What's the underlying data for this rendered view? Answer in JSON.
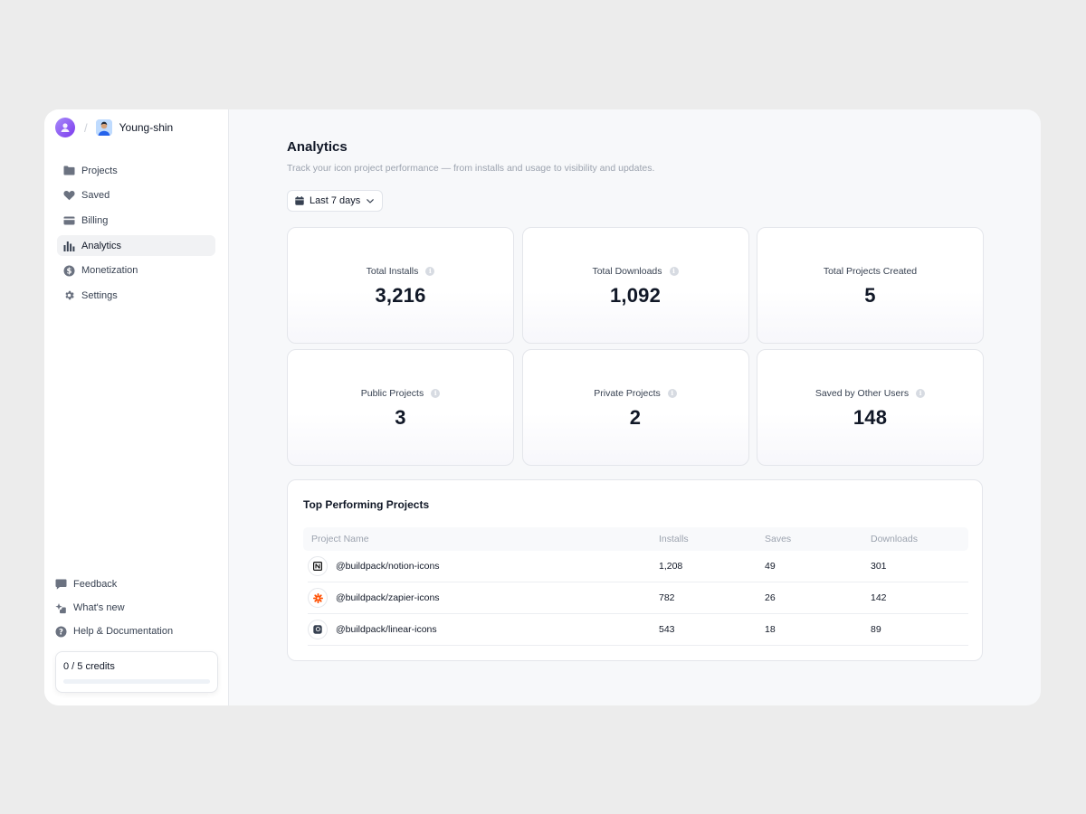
{
  "header": {
    "user_name": "Young-shin",
    "separator": "/"
  },
  "sidebar": {
    "items": [
      {
        "label": "Projects",
        "icon": "folder-icon",
        "active": false
      },
      {
        "label": "Saved",
        "icon": "heart-icon",
        "active": false
      },
      {
        "label": "Billing",
        "icon": "credit-card-icon",
        "active": false
      },
      {
        "label": "Analytics",
        "icon": "bar-chart-icon",
        "active": true
      },
      {
        "label": "Monetization",
        "icon": "dollar-coin-icon",
        "active": false
      },
      {
        "label": "Settings",
        "icon": "gear-icon",
        "active": false
      }
    ],
    "bottom_items": [
      {
        "label": "Feedback",
        "icon": "chat-bubble-icon"
      },
      {
        "label": "What's new",
        "icon": "sparkle-badge-icon"
      },
      {
        "label": "Help & Documentation",
        "icon": "question-circle-icon"
      }
    ],
    "credits": {
      "label": "0 / 5 credits",
      "used": 0,
      "total": 5
    }
  },
  "main": {
    "title": "Analytics",
    "subtitle": "Track your icon project performance — from installs and usage to visibility and updates.",
    "date_range": "Last 7 days",
    "stats": [
      {
        "label": "Total Installs",
        "value": "3,216",
        "info": true
      },
      {
        "label": "Total Downloads",
        "value": "1,092",
        "info": true
      },
      {
        "label": "Total Projects Created",
        "value": "5",
        "info": false
      },
      {
        "label": "Public Projects",
        "value": "3",
        "info": true
      },
      {
        "label": "Private Projects",
        "value": "2",
        "info": true
      },
      {
        "label": "Saved by Other Users",
        "value": "148",
        "info": true
      }
    ],
    "table": {
      "title": "Top Performing Projects",
      "columns": [
        "Project Name",
        "Installs",
        "Saves",
        "Downloads"
      ],
      "rows": [
        {
          "name": "@buildpack/notion-icons",
          "icon": "notion-logo-icon",
          "installs": "1,208",
          "saves": "49",
          "downloads": "301"
        },
        {
          "name": "@buildpack/zapier-icons",
          "icon": "zapier-logo-icon",
          "installs": "782",
          "saves": "26",
          "downloads": "142"
        },
        {
          "name": "@buildpack/linear-icons",
          "icon": "linear-logo-icon",
          "installs": "543",
          "saves": "18",
          "downloads": "89"
        }
      ]
    }
  },
  "colors": {
    "background": "#ececec",
    "panel": "#f7f8fa",
    "accent": "#7c3aed",
    "zapier_orange": "#ff4f00",
    "credits_bar": "#93c5fd"
  }
}
